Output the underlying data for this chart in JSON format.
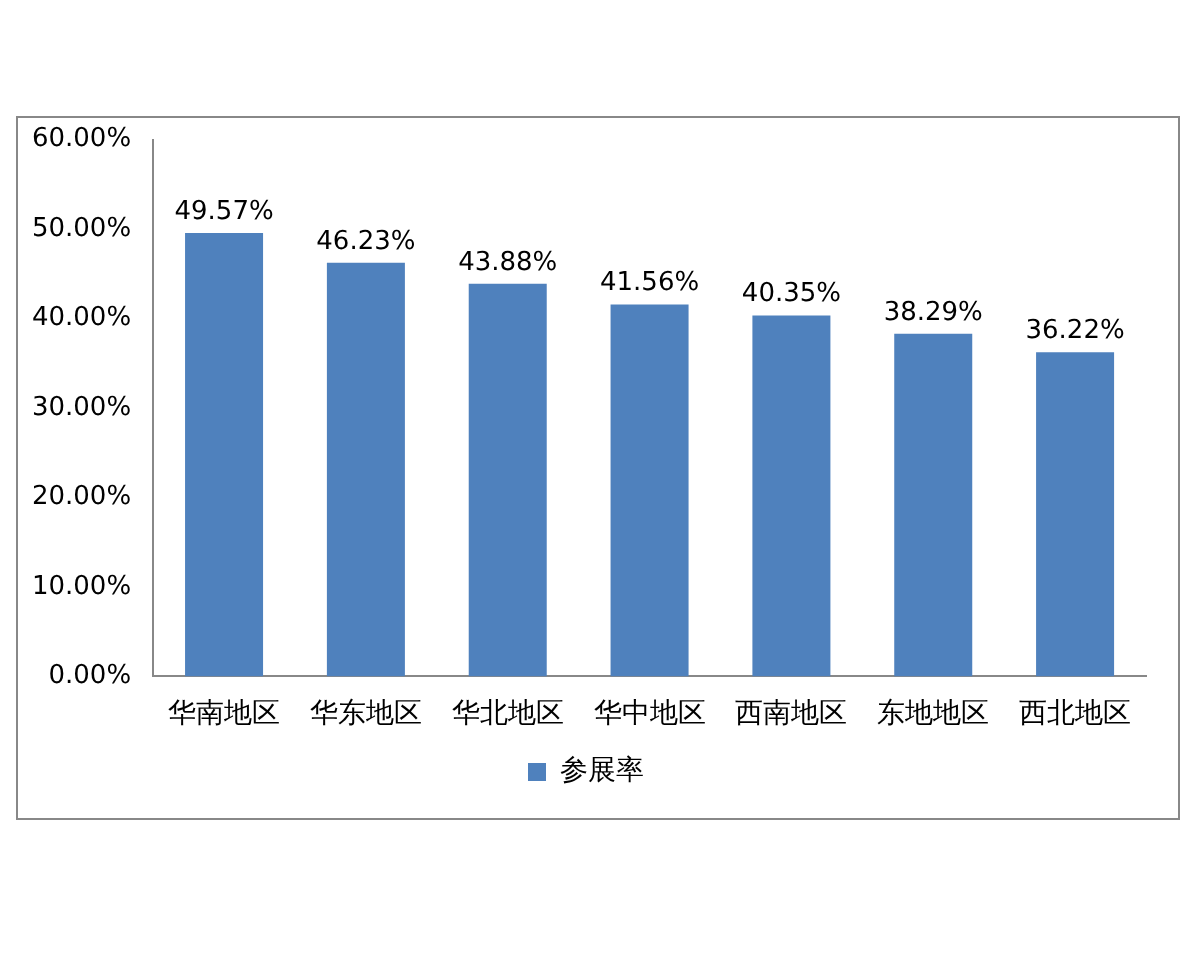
{
  "chart_data": {
    "type": "bar",
    "categories": [
      "华南地区",
      "华东地区",
      "华北地区",
      "华中地区",
      "西南地区",
      "东地地区",
      "西北地区"
    ],
    "series": [
      {
        "name": "参展率",
        "color": "#4f81bd",
        "values": [
          49.57,
          46.23,
          43.88,
          41.56,
          40.35,
          38.29,
          36.22
        ],
        "value_labels": [
          "49.57%",
          "46.23%",
          "43.88%",
          "41.56%",
          "40.35%",
          "38.29%",
          "36.22%"
        ]
      }
    ],
    "ylim": [
      0,
      60
    ],
    "yticks": [
      {
        "value": 0,
        "label": "0.00%"
      },
      {
        "value": 10,
        "label": "10.00%"
      },
      {
        "value": 20,
        "label": "20.00%"
      },
      {
        "value": 30,
        "label": "30.00%"
      },
      {
        "value": 40,
        "label": "40.00%"
      },
      {
        "value": 50,
        "label": "50.00%"
      },
      {
        "value": 60,
        "label": "60.00%"
      }
    ],
    "grid": false,
    "legend": "bottom"
  }
}
